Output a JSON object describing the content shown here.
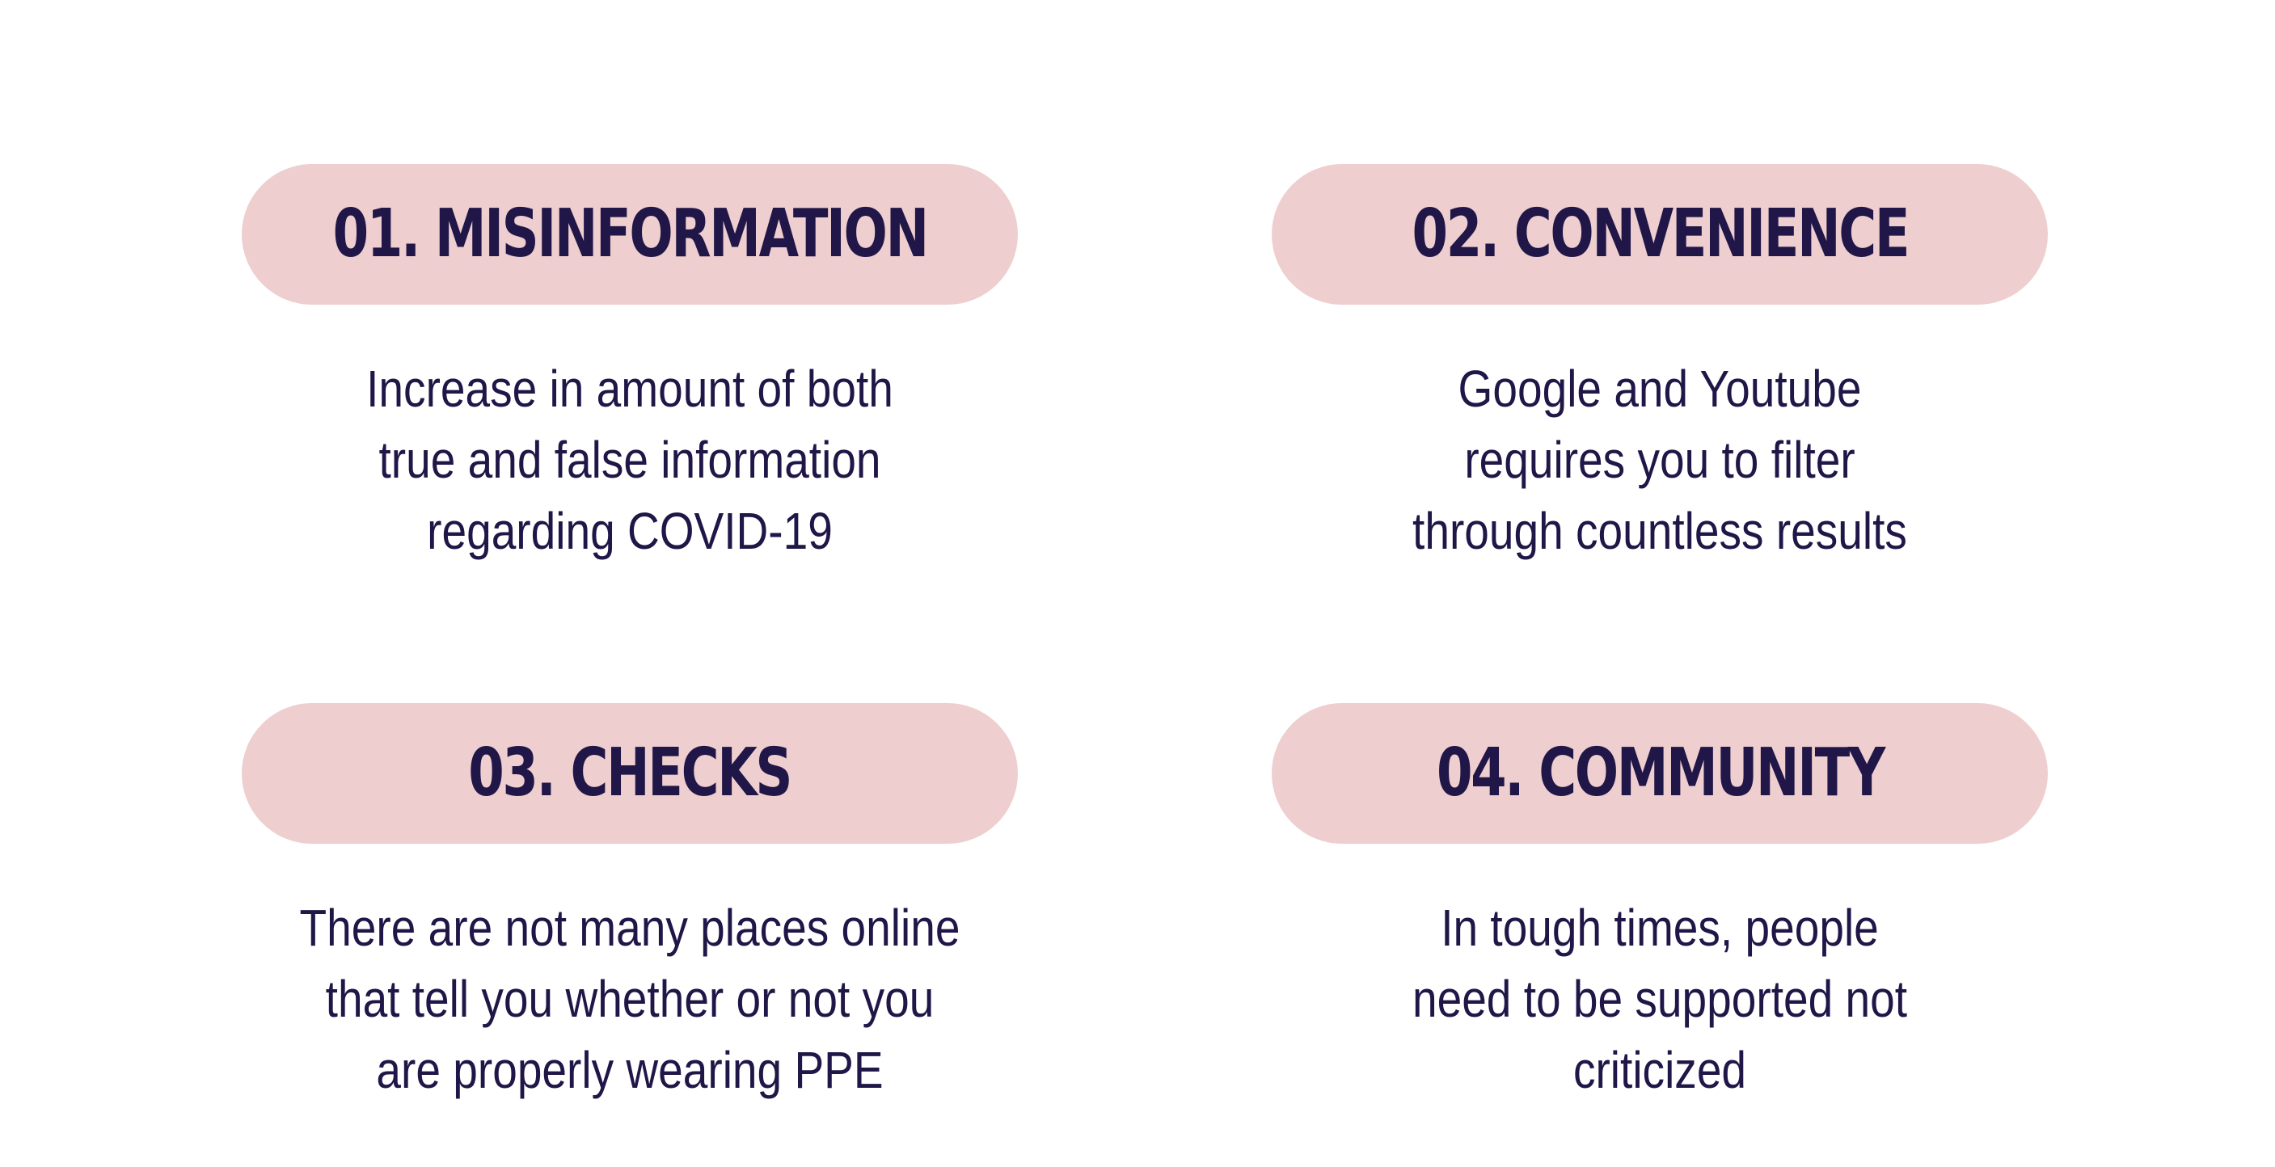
{
  "items": [
    {
      "title": "01. MISINFORMATION",
      "description": "Increase in amount of both\ntrue and false information\nregarding COVID-19"
    },
    {
      "title": "02. CONVENIENCE",
      "description": "Google and Youtube\nrequires you to filter\nthrough countless results"
    },
    {
      "title": "03. CHECKS",
      "description": "There are not many places online\nthat tell you whether or not you\nare properly wearing PPE"
    },
    {
      "title": "04. COMMUNITY",
      "description": "In tough times, people\nneed to be supported not\ncriticized"
    }
  ],
  "colors": {
    "pill": "#eecece",
    "text": "#201647",
    "background": "#ffffff"
  }
}
